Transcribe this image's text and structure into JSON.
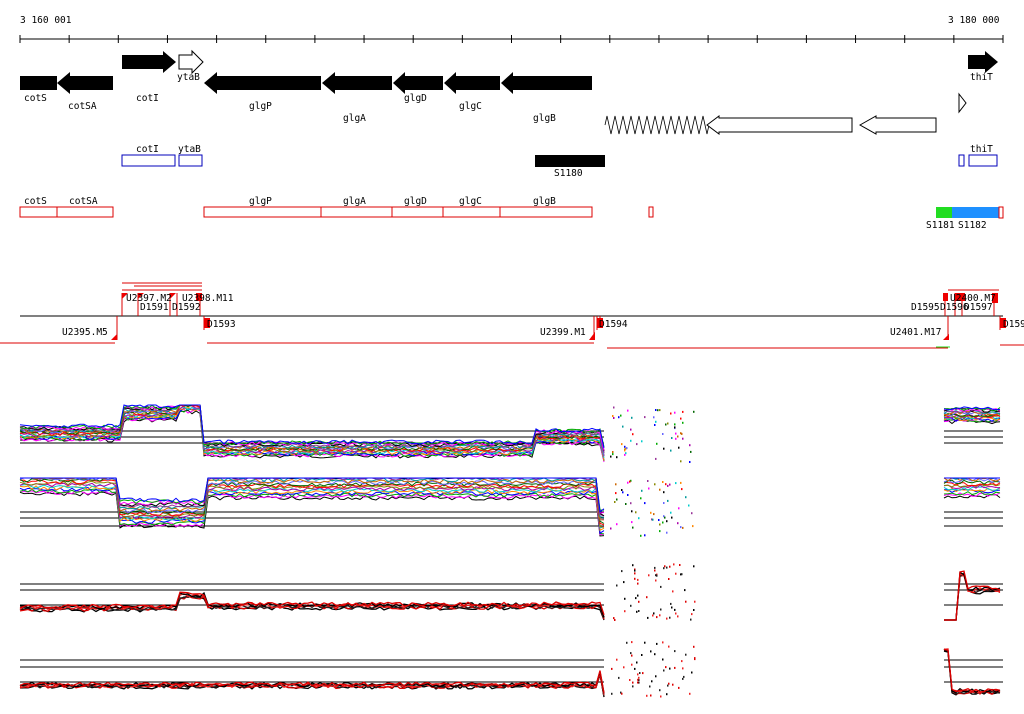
{
  "ruler": {
    "start_label": "3 160 001",
    "end_label": "3 180 000"
  },
  "colors": {
    "gene_fill": "#000000",
    "outline_blue": "#0000bb",
    "outline_red": "#dd0000",
    "green": "#22dd22",
    "sky": "#1e90ff",
    "tss": "#ee0000"
  },
  "genes": [
    {
      "name": "cotS",
      "show_label": true
    },
    {
      "name": "cotSA",
      "show_label": true
    },
    {
      "name": "cotI",
      "show_label": true
    },
    {
      "name": "ytaB",
      "show_label": true
    },
    {
      "name": "glgP",
      "show_label": true
    },
    {
      "name": "glgA",
      "show_label": true
    },
    {
      "name": "glgD",
      "show_label": true
    },
    {
      "name": "glgC",
      "show_label": true
    },
    {
      "name": "glgB",
      "show_label": true
    },
    {
      "name": "thiT",
      "show_label": true
    }
  ],
  "blue_boxes": [
    {
      "label": "cotI"
    },
    {
      "label": "ytaB"
    },
    {
      "label": ""
    },
    {
      "label": "thiT"
    }
  ],
  "s_features": [
    {
      "label": "S1180"
    },
    {
      "label": "S1181"
    },
    {
      "label": "S1182"
    }
  ],
  "red_boxes": [
    {
      "label": "cotS"
    },
    {
      "label": "cotSA"
    },
    {
      "label": "glgP"
    },
    {
      "label": "glgA"
    },
    {
      "label": "glgD"
    },
    {
      "label": "glgC"
    },
    {
      "label": "glgB"
    },
    {
      "label": ""
    }
  ],
  "tss_labels": {
    "left_cluster_top": "U2397.M2",
    "d1591": "D1591",
    "d1592": "D1592",
    "u2398": "U2398.M11",
    "u2395": "U2395.M5",
    "d1593": "D1593",
    "u2399": "U2399.M1",
    "d1594": "D1594",
    "u2401": "U2401.M17",
    "right_cluster_top": "U2400.M7",
    "d1595": "D1595",
    "d1596": "D1596",
    "d1597": "D1597",
    "d159x": "D159"
  }
}
